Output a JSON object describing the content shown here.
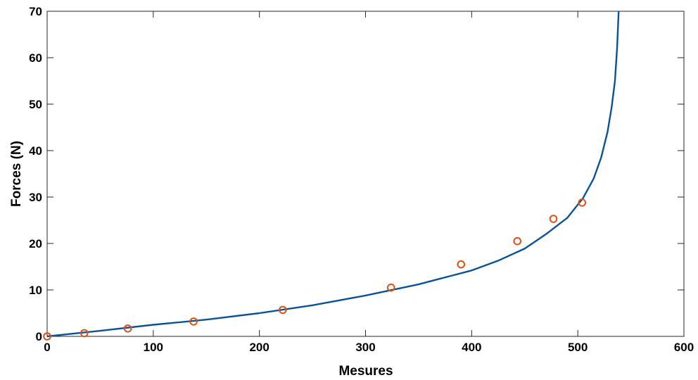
{
  "chart_data": {
    "type": "scatter",
    "xlabel": "Mesures",
    "ylabel": "Forces (N)",
    "xlim": [
      0,
      600
    ],
    "ylim": [
      0,
      70
    ],
    "xticks": [
      "0",
      "100",
      "200",
      "300",
      "400",
      "500",
      "600"
    ],
    "yticks": [
      "0",
      "10",
      "20",
      "30",
      "40",
      "50",
      "60",
      "70"
    ],
    "grid": false,
    "legend": "none",
    "series": [
      {
        "kind": "scatter",
        "color": "#d95319",
        "marker": "circle",
        "x": [
          0,
          35,
          76,
          138,
          222,
          324,
          390,
          443,
          477,
          504
        ],
        "y": [
          0,
          0.7,
          1.7,
          3.2,
          5.7,
          10.5,
          15.5,
          20.5,
          25.3,
          28.8
        ]
      },
      {
        "kind": "line",
        "color": "#0b5394",
        "x": [
          0,
          50,
          100,
          150,
          200,
          250,
          300,
          350,
          400,
          425,
          450,
          470,
          490,
          505,
          515,
          522,
          528,
          532,
          535,
          537,
          538.5
        ],
        "y": [
          0,
          1.2,
          2.5,
          3.6,
          5.0,
          6.7,
          8.8,
          11.2,
          14.2,
          16.3,
          18.9,
          22.0,
          25.5,
          29.8,
          34.0,
          38.5,
          44.0,
          49.5,
          55.0,
          62.0,
          70.0
        ]
      }
    ]
  }
}
